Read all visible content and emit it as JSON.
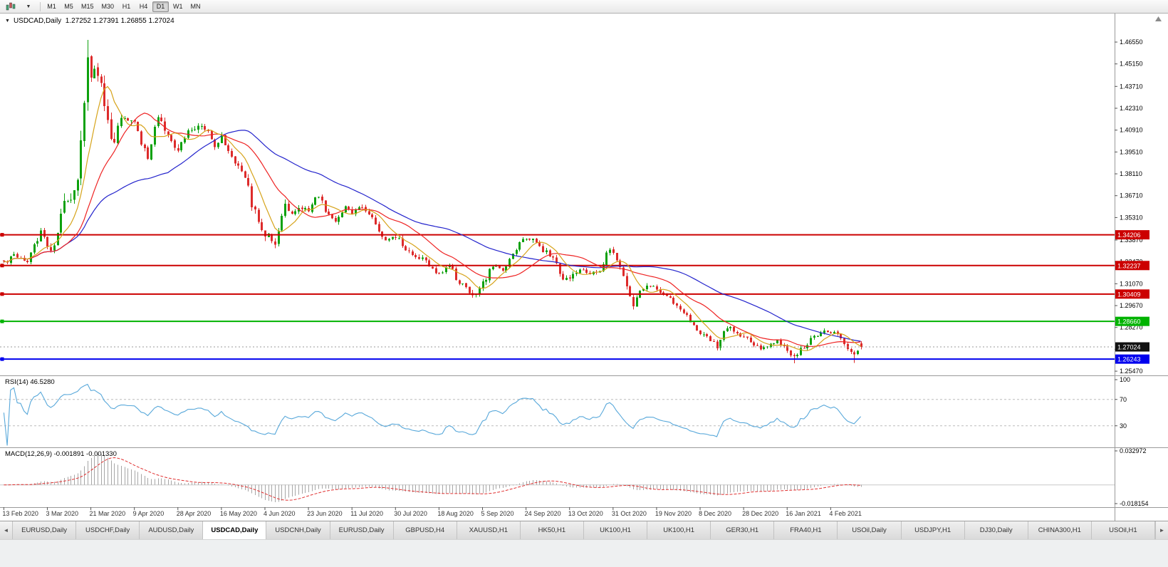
{
  "icons": {
    "caret_down": "▼",
    "tab_left": "◄",
    "tab_right": "►"
  },
  "toolbar": {
    "timeframes": [
      {
        "label": "M1",
        "active": false
      },
      {
        "label": "M5",
        "active": false
      },
      {
        "label": "M15",
        "active": false
      },
      {
        "label": "M30",
        "active": false
      },
      {
        "label": "H1",
        "active": false
      },
      {
        "label": "H4",
        "active": false
      },
      {
        "label": "D1",
        "active": true
      },
      {
        "label": "W1",
        "active": false
      },
      {
        "label": "MN",
        "active": false
      }
    ]
  },
  "chart": {
    "title_text": "USDCAD,Daily  1.27252 1.27391 1.26855 1.27024",
    "rsi_label": "RSI(14) 46.5280",
    "macd_label": "MACD(12,26,9) -0.001891 -0.001330"
  },
  "tabs": [
    {
      "label": "EURUSD,Daily",
      "active": false
    },
    {
      "label": "USDCHF,Daily",
      "active": false
    },
    {
      "label": "AUDUSD,Daily",
      "active": false
    },
    {
      "label": "USDCAD,Daily",
      "active": true
    },
    {
      "label": "USDCNH,Daily",
      "active": false
    },
    {
      "label": "EURUSD,Daily",
      "active": false
    },
    {
      "label": "GBPUSD,H4",
      "active": false
    },
    {
      "label": "XAUUSD,H1",
      "active": false
    },
    {
      "label": "HK50,H1",
      "active": false
    },
    {
      "label": "UK100,H1",
      "active": false
    },
    {
      "label": "UK100,H1",
      "active": false
    },
    {
      "label": "GER30,H1",
      "active": false
    },
    {
      "label": "FRA40,H1",
      "active": false
    },
    {
      "label": "USOil,Daily",
      "active": false
    },
    {
      "label": "USDJPY,H1",
      "active": false
    },
    {
      "label": "DJ30,Daily",
      "active": false
    },
    {
      "label": "CHINA300,H1",
      "active": false
    },
    {
      "label": "USOil,H1",
      "active": false
    }
  ],
  "chart_data": {
    "type": "candlestick",
    "symbol": "USDCAD",
    "timeframe": "Daily",
    "current_bar": {
      "open": 1.27252,
      "high": 1.27391,
      "low": 1.26855,
      "close": 1.27024
    },
    "price_axis": {
      "min": 1.252,
      "max": 1.4824,
      "ticks": [
        1.4655,
        1.4515,
        1.4371,
        1.4231,
        1.4091,
        1.3951,
        1.3811,
        1.3671,
        1.3531,
        1.3387,
        1.3247,
        1.3107,
        1.2967,
        1.2827,
        1.2687,
        1.2547
      ]
    },
    "hlines": [
      {
        "price": 1.34206,
        "color": "#cc0000",
        "width": 2
      },
      {
        "price": 1.32237,
        "color": "#cc0000",
        "width": 2
      },
      {
        "price": 1.30409,
        "color": "#cc0000",
        "width": 2
      },
      {
        "price": 1.2866,
        "color": "#00b300",
        "width": 2
      },
      {
        "price": 1.26243,
        "color": "#0000ee",
        "width": 2
      }
    ],
    "current_price_line": {
      "price": 1.27024,
      "color": "#111111"
    },
    "x_axis": {
      "labels": [
        "13 Feb 2020",
        "3 Mar 2020",
        "21 Mar 2020",
        "9 Apr 2020",
        "28 Apr 2020",
        "16 May 2020",
        "4 Jun 2020",
        "23 Jun 2020",
        "11 Jul 2020",
        "30 Jul 2020",
        "18 Aug 2020",
        "5 Sep 2020",
        "24 Sep 2020",
        "13 Oct 2020",
        "31 Oct 2020",
        "19 Nov 2020",
        "8 Dec 2020",
        "28 Dec 2020",
        "16 Jan 2021",
        "4 Feb 2021"
      ],
      "candles_per_label": 13,
      "num_candles": 257
    },
    "candles": {
      "up_color": "#0da10d",
      "down_color": "#dd2b2b",
      "anchors": [
        [
          0,
          1.3245,
          0.0035
        ],
        [
          4,
          1.329,
          0.0035
        ],
        [
          7,
          1.3255,
          0.0035
        ],
        [
          9,
          1.336,
          0.004
        ],
        [
          11,
          1.343,
          0.005
        ],
        [
          14,
          1.333,
          0.005
        ],
        [
          16,
          1.342,
          0.006
        ],
        [
          18,
          1.366,
          0.01
        ],
        [
          20,
          1.362,
          0.01
        ],
        [
          22,
          1.382,
          0.012
        ],
        [
          23,
          1.398,
          0.014
        ],
        [
          25,
          1.452,
          0.02
        ],
        [
          26,
          1.444,
          0.016
        ],
        [
          28,
          1.449,
          0.013
        ],
        [
          30,
          1.425,
          0.011
        ],
        [
          33,
          1.401,
          0.009
        ],
        [
          35,
          1.42,
          0.008
        ],
        [
          37,
          1.412,
          0.007
        ],
        [
          39,
          1.415,
          0.007
        ],
        [
          41,
          1.401,
          0.006
        ],
        [
          43,
          1.39,
          0.006
        ],
        [
          46,
          1.419,
          0.006
        ],
        [
          49,
          1.405,
          0.005
        ],
        [
          52,
          1.398,
          0.005
        ],
        [
          55,
          1.408,
          0.005
        ],
        [
          58,
          1.412,
          0.005
        ],
        [
          61,
          1.41,
          0.004
        ],
        [
          63,
          1.398,
          0.004
        ],
        [
          65,
          1.406,
          0.004
        ],
        [
          67,
          1.395,
          0.004
        ],
        [
          70,
          1.387,
          0.004
        ],
        [
          72,
          1.378,
          0.005
        ],
        [
          75,
          1.356,
          0.006
        ],
        [
          78,
          1.343,
          0.006
        ],
        [
          81,
          1.337,
          0.005
        ],
        [
          84,
          1.362,
          0.006
        ],
        [
          86,
          1.354,
          0.005
        ],
        [
          88,
          1.361,
          0.004
        ],
        [
          91,
          1.357,
          0.004
        ],
        [
          94,
          1.368,
          0.004
        ],
        [
          96,
          1.358,
          0.004
        ],
        [
          99,
          1.351,
          0.004
        ],
        [
          102,
          1.36,
          0.004
        ],
        [
          104,
          1.357,
          0.004
        ],
        [
          107,
          1.359,
          0.0035
        ],
        [
          110,
          1.353,
          0.0035
        ],
        [
          112,
          1.343,
          0.004
        ],
        [
          115,
          1.339,
          0.004
        ],
        [
          117,
          1.341,
          0.0035
        ],
        [
          120,
          1.333,
          0.0035
        ],
        [
          123,
          1.329,
          0.0035
        ],
        [
          126,
          1.325,
          0.0035
        ],
        [
          128,
          1.319,
          0.0035
        ],
        [
          130,
          1.318,
          0.0035
        ],
        [
          133,
          1.322,
          0.0035
        ],
        [
          136,
          1.312,
          0.0035
        ],
        [
          139,
          1.306,
          0.004
        ],
        [
          141,
          1.303,
          0.004
        ],
        [
          143,
          1.312,
          0.004
        ],
        [
          146,
          1.323,
          0.004
        ],
        [
          149,
          1.319,
          0.0035
        ],
        [
          152,
          1.33,
          0.0035
        ],
        [
          155,
          1.338,
          0.0035
        ],
        [
          158,
          1.34,
          0.004
        ],
        [
          161,
          1.332,
          0.0035
        ],
        [
          164,
          1.327,
          0.0035
        ],
        [
          167,
          1.312,
          0.004
        ],
        [
          169,
          1.314,
          0.0035
        ],
        [
          172,
          1.321,
          0.0035
        ],
        [
          175,
          1.318,
          0.003
        ],
        [
          178,
          1.318,
          0.003
        ],
        [
          181,
          1.333,
          0.004
        ],
        [
          182,
          1.332,
          0.0035
        ],
        [
          184,
          1.322,
          0.004
        ],
        [
          186,
          1.308,
          0.0045
        ],
        [
          188,
          1.298,
          0.0045
        ],
        [
          190,
          1.306,
          0.004
        ],
        [
          192,
          1.31,
          0.0035
        ],
        [
          195,
          1.307,
          0.0035
        ],
        [
          198,
          1.302,
          0.003
        ],
        [
          200,
          1.299,
          0.003
        ],
        [
          203,
          1.293,
          0.003
        ],
        [
          206,
          1.284,
          0.0035
        ],
        [
          208,
          1.279,
          0.0035
        ],
        [
          211,
          1.275,
          0.003
        ],
        [
          213,
          1.27,
          0.0035
        ],
        [
          216,
          1.283,
          0.0035
        ],
        [
          219,
          1.279,
          0.003
        ],
        [
          221,
          1.276,
          0.003
        ],
        [
          224,
          1.272,
          0.003
        ],
        [
          226,
          1.269,
          0.003
        ],
        [
          229,
          1.272,
          0.003
        ],
        [
          231,
          1.274,
          0.003
        ],
        [
          233,
          1.27,
          0.003
        ],
        [
          236,
          1.2635,
          0.003
        ],
        [
          239,
          1.27,
          0.003
        ],
        [
          242,
          1.278,
          0.003
        ],
        [
          245,
          1.28,
          0.003
        ],
        [
          247,
          1.279,
          0.003
        ],
        [
          250,
          1.277,
          0.003
        ],
        [
          252,
          1.269,
          0.003
        ],
        [
          254,
          1.2645,
          0.003
        ],
        [
          256,
          1.2702,
          0.002
        ]
      ],
      "spikes": [
        [
          25,
          "h",
          1.4668
        ],
        [
          236,
          "l",
          1.2598
        ],
        [
          254,
          "l",
          1.26
        ]
      ]
    },
    "moving_averages": [
      {
        "period": 8,
        "color": "#d6a31a"
      },
      {
        "period": 20,
        "color": "#ee2222"
      },
      {
        "period": 50,
        "color": "#2323cc"
      }
    ],
    "rsi": {
      "period": 14,
      "display_value": 46.528,
      "range": [
        0,
        100
      ],
      "levels": [
        70,
        30
      ],
      "axis_ticks": [
        100,
        70,
        30
      ],
      "color": "#58a8da"
    },
    "macd": {
      "fast": 12,
      "slow": 26,
      "signal": 9,
      "display_values": [
        -0.001891,
        -0.00133
      ],
      "axis_ticks": [
        0.032972,
        -0.018154
      ],
      "range": [
        -0.018154,
        0.032972
      ],
      "hist_color": "#a6a6a6",
      "signal_color": "#e03030"
    }
  }
}
